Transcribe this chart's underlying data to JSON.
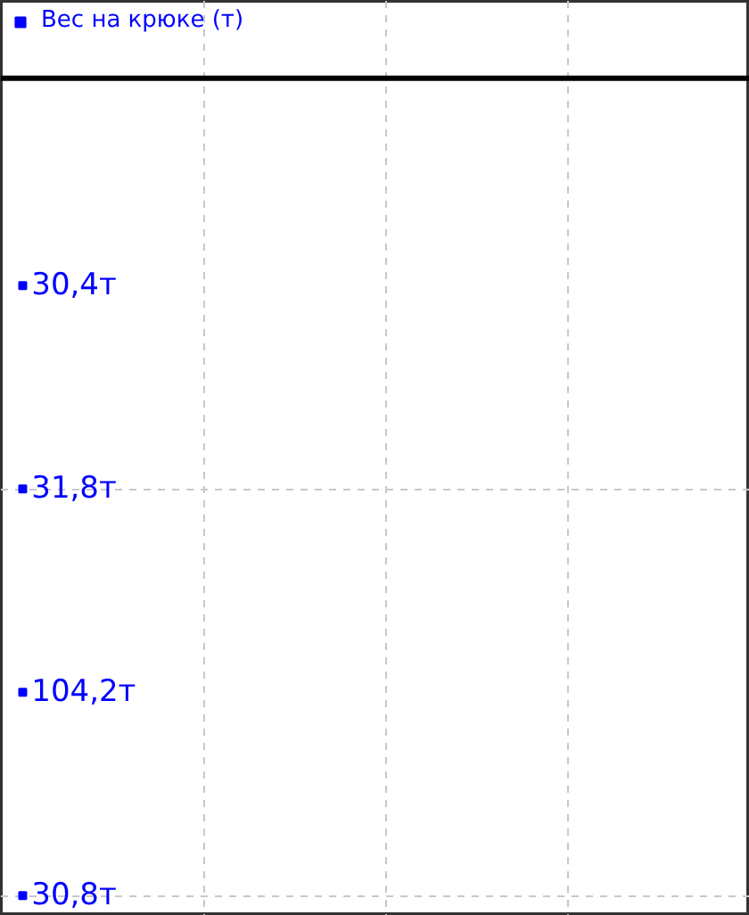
{
  "chart_data": {
    "type": "other",
    "categories": [
      null,
      null,
      null,
      null
    ],
    "series": [
      {
        "name": "Вес на крюке (т)",
        "color": "#0000ff",
        "values": [
          30.4,
          31.8,
          104.2,
          30.8
        ],
        "value_labels": [
          "30,4т",
          "31,8т",
          "104,2т",
          "30,8т"
        ]
      }
    ],
    "legend": "top"
  }
}
